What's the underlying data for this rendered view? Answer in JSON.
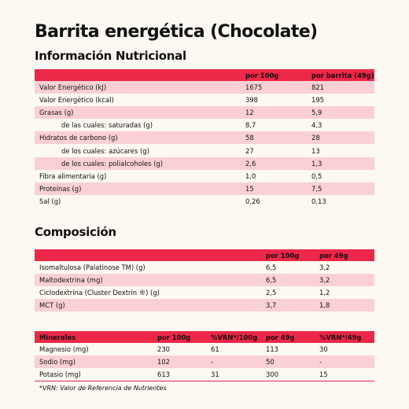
{
  "title": "Barrita energética (Chocolate)",
  "nutrition": {
    "heading": "Información Nutricional",
    "headers": [
      "",
      "por 100g",
      "por barrita (49g)"
    ],
    "rows": [
      {
        "label": "Valor Energético (kJ)",
        "per100": "1675",
        "perBar": "821"
      },
      {
        "label": "Valor Energético (kcal)",
        "per100": "398",
        "perBar": "195"
      },
      {
        "label": "Grasas (g)",
        "per100": "12",
        "perBar": "5,9"
      },
      {
        "label": "de las cuales: saturadas (g)",
        "per100": "8,7",
        "perBar": "4,3"
      },
      {
        "label": "Hidratos de carbono (g)",
        "per100": "58",
        "perBar": "28"
      },
      {
        "label": "de los cuales: azúcares (g)",
        "per100": "27",
        "perBar": "13"
      },
      {
        "label": "de los cuales: polialcoholes (g)",
        "per100": "2,6",
        "perBar": "1,3"
      },
      {
        "label": "Fibra alimentaria (g)",
        "per100": "1,0",
        "perBar": "0,5"
      },
      {
        "label": "Proteínas (g)",
        "per100": "15",
        "perBar": "7,5"
      },
      {
        "label": "Sal (g)",
        "per100": "0,26",
        "perBar": "0,13"
      }
    ]
  },
  "composition": {
    "heading": "Composición",
    "headers": [
      "",
      "por 100g",
      "por 49g"
    ],
    "rows": [
      {
        "label": "Isomaltulosa (Palatinose TM) (g)",
        "per100": "6,5",
        "per49": "3,2"
      },
      {
        "label": "Maltodextrina (mg)",
        "per100": "6,5",
        "per49": "3,2"
      },
      {
        "label": "Ciclodextrina (Cluster Dextrin ®) (g)",
        "per100": "2,5",
        "per49": "1,2"
      },
      {
        "label": "MCT (g)",
        "per100": "3,7",
        "per49": "1,8"
      }
    ]
  },
  "minerals": {
    "headers": [
      "Minerales",
      "por 100g",
      "%VRN*/100g",
      "por 49g",
      "%VRN*/49g"
    ],
    "rows": [
      {
        "label": "Magnesio (mg)",
        "per100": "230",
        "vrn100": "61",
        "per49": "113",
        "vrn49": "30"
      },
      {
        "label": "Sodio (mg)",
        "per100": "102",
        "vrn100": "-",
        "per49": "50",
        "vrn49": "-"
      },
      {
        "label": "Potasio (mg)",
        "per100": "613",
        "vrn100": "31",
        "per49": "300",
        "vrn49": "15"
      }
    ],
    "footnote": "*VRN: Valor de Referencia de Nutrientes"
  },
  "colors": {
    "accent": "#ec2849",
    "rowTint": "#fbd0d5",
    "background": "#fbf9f2"
  }
}
